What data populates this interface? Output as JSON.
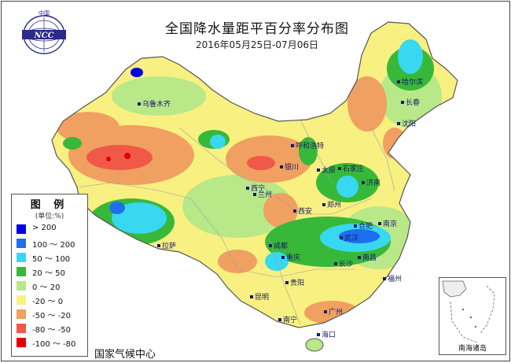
{
  "header": {
    "title": "全国降水量距平百分率分布图",
    "period": "2016年05月25日-07月06日"
  },
  "logo": {
    "top_text": "中国",
    "initials": "NCC"
  },
  "legend": {
    "title": "图 例",
    "unit": "(单位:%)",
    "items": [
      {
        "label": "> 200",
        "color": "#0000e0"
      },
      {
        "label": "100 ～ 200",
        "color": "#1e6ff0"
      },
      {
        "label": "50 ～ 100",
        "color": "#38d8f0"
      },
      {
        "label": "20 ～ 50",
        "color": "#38b838"
      },
      {
        "label": "0 ～ 20",
        "color": "#b8e888"
      },
      {
        "label": "-20 ～ 0",
        "color": "#f8f080"
      },
      {
        "label": "-50 ～ -20",
        "color": "#f0a060"
      },
      {
        "label": "-80 ～ -50",
        "color": "#f05848"
      },
      {
        "label": "-100 ～ -80",
        "color": "#e00000"
      }
    ]
  },
  "cities": [
    {
      "name": "乌鲁木齐"
    },
    {
      "name": "哈尔滨"
    },
    {
      "name": "长春"
    },
    {
      "name": "沈阳"
    },
    {
      "name": "呼和浩特"
    },
    {
      "name": "银川"
    },
    {
      "name": "太原"
    },
    {
      "name": "石家庄"
    },
    {
      "name": "济南"
    },
    {
      "name": "西宁"
    },
    {
      "name": "兰州"
    },
    {
      "name": "西安"
    },
    {
      "name": "郑州"
    },
    {
      "name": "合肥"
    },
    {
      "name": "南京"
    },
    {
      "name": "武汉"
    },
    {
      "name": "拉萨"
    },
    {
      "name": "成都"
    },
    {
      "name": "重庆"
    },
    {
      "name": "长沙"
    },
    {
      "name": "南昌"
    },
    {
      "name": "贵阳"
    },
    {
      "name": "昆明"
    },
    {
      "name": "南宁"
    },
    {
      "name": "广州"
    },
    {
      "name": "福州"
    },
    {
      "name": "海口"
    }
  ],
  "inset": {
    "label": "南海诸岛"
  },
  "footer": {
    "agency": "国家气候中心"
  }
}
